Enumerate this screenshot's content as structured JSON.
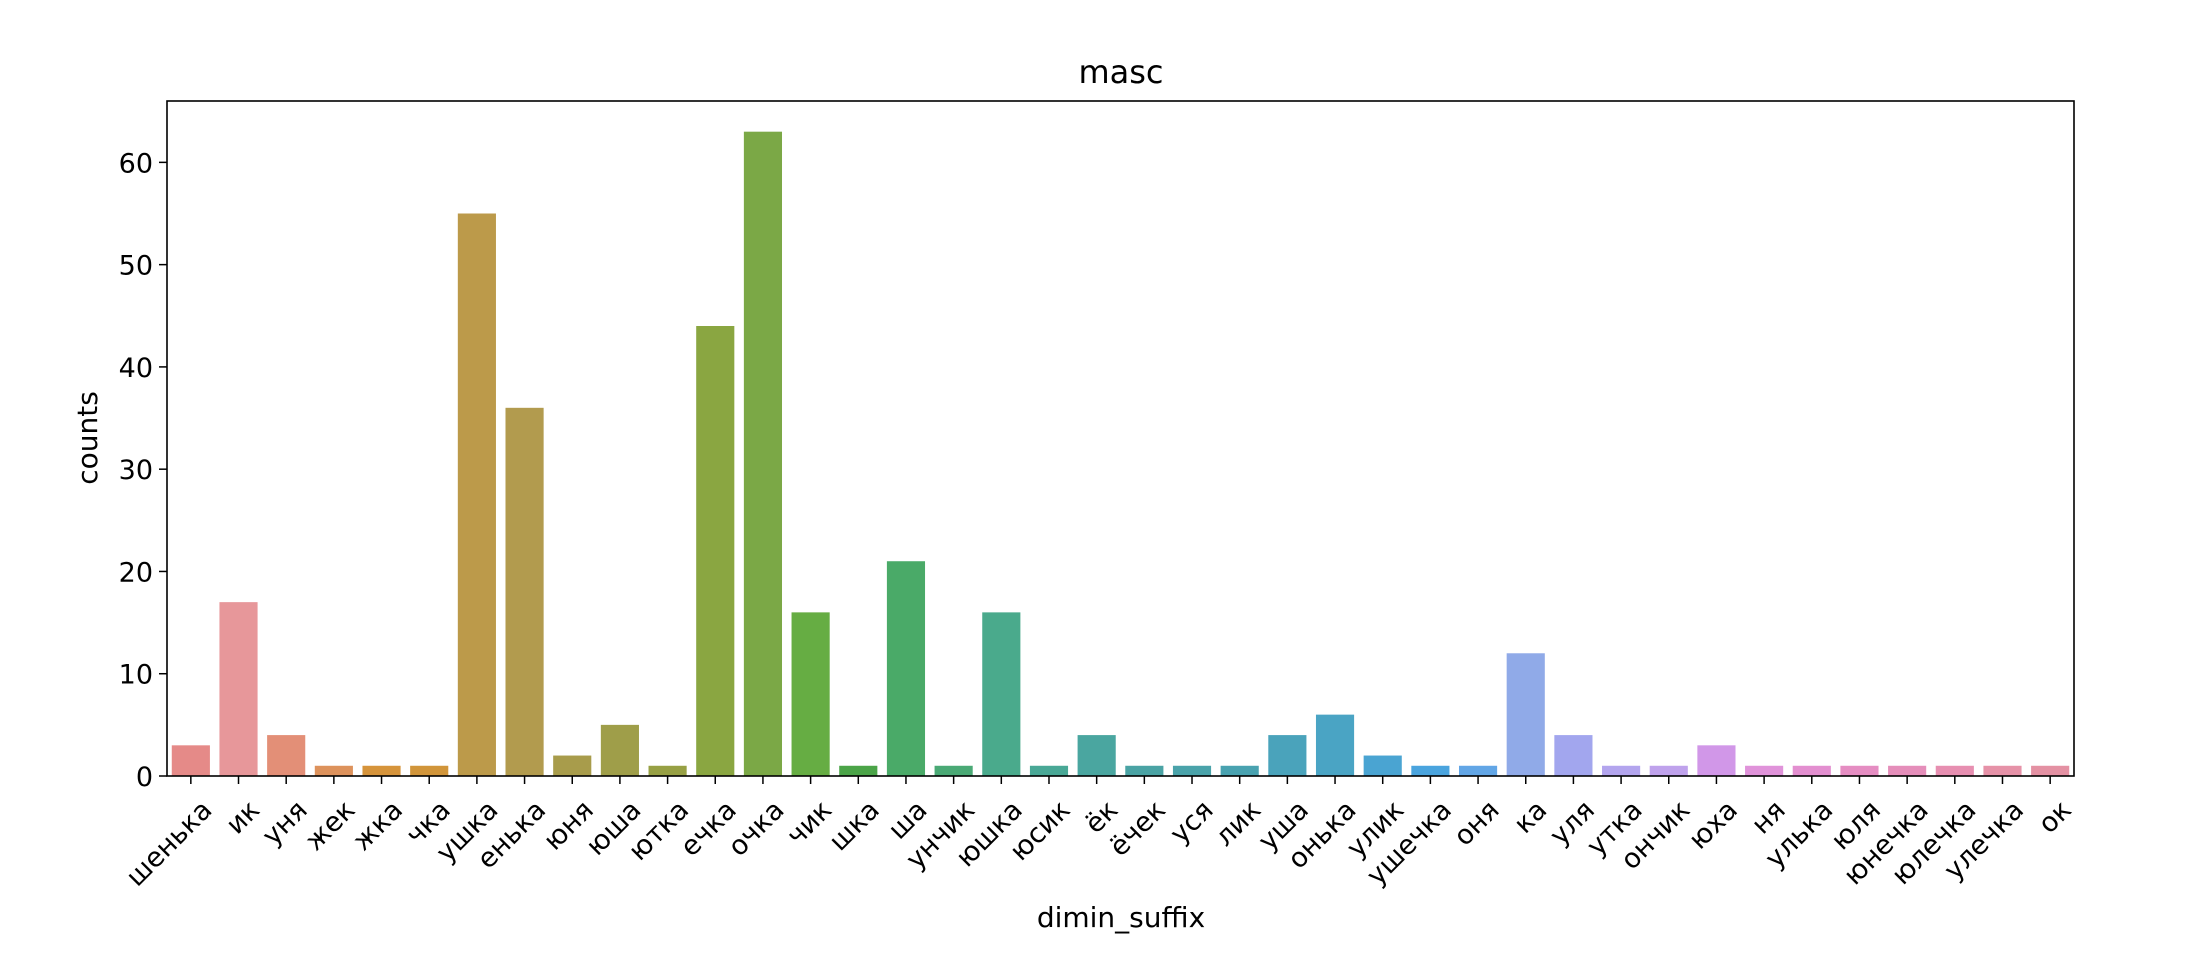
{
  "chart_data": {
    "type": "bar",
    "title": "masc",
    "xlabel": "dimin_suffix",
    "ylabel": "counts",
    "ylim": [
      0,
      66
    ],
    "yticks": [
      0,
      10,
      20,
      30,
      40,
      50,
      60
    ],
    "grid": false,
    "categories": [
      "шенька",
      "ик",
      "уня",
      "жек",
      "жка",
      "чка",
      "ушка",
      "енька",
      "юня",
      "юша",
      "ютка",
      "ечка",
      "очка",
      "чик",
      "шка",
      "ша",
      "унчик",
      "юшка",
      "юсик",
      "ёк",
      "ёчек",
      "уся",
      "лик",
      "уша",
      "онька",
      "улик",
      "ушечка",
      "оня",
      "ка",
      "уля",
      "утка",
      "ончик",
      "юха",
      "ня",
      "улька",
      "юля",
      "юнечка",
      "юлечка",
      "улечка",
      "ок"
    ],
    "values": [
      3,
      17,
      4,
      1,
      1,
      1,
      55,
      36,
      2,
      5,
      1,
      44,
      63,
      16,
      1,
      21,
      1,
      16,
      1,
      4,
      1,
      1,
      1,
      4,
      6,
      2,
      1,
      1,
      12,
      4,
      1,
      1,
      3,
      1,
      1,
      1,
      1,
      1,
      1,
      1
    ],
    "colors": [
      "#e58a88",
      "#e7979a",
      "#e38f77",
      "#dd925c",
      "#d6943b",
      "#d1953a",
      "#bc9a4a",
      "#b29b4e",
      "#a89c4b",
      "#9f9e49",
      "#97a044",
      "#8aa641",
      "#7ba846",
      "#66ad43",
      "#4ba448",
      "#4aaa68",
      "#4aa975",
      "#4aaa8c",
      "#49a896",
      "#4aa6a0",
      "#4aa3a4",
      "#4aa3aa",
      "#49a2b0",
      "#4aa3bb",
      "#4aa4c4",
      "#4aa4d2",
      "#4aa4de",
      "#62a6e6",
      "#90aae8",
      "#a2a6ee",
      "#b3a5ee",
      "#bfa2ec",
      "#d197e8",
      "#e093da",
      "#e38fd0",
      "#e58dc2",
      "#e58eba",
      "#e78fb1",
      "#e692a8",
      "#e491a3"
    ]
  }
}
